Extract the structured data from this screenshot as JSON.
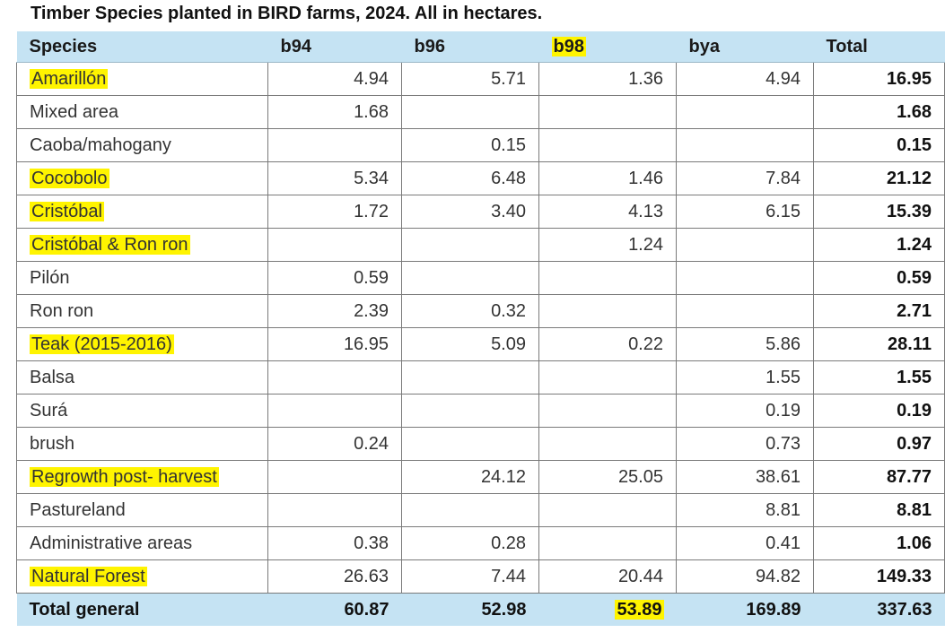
{
  "title": "Timber Species planted in BIRD farms, 2024. All in hectares.",
  "columns": [
    "Species",
    "b94",
    "b96",
    "b98",
    "bya",
    "Total"
  ],
  "rows": [
    {
      "species": "Amarillón",
      "b94": "4.94",
      "b96": "5.71",
      "b98": "1.36",
      "bya": "4.94",
      "total": "16.95",
      "highlight": true
    },
    {
      "species": "Mixed area",
      "b94": "1.68",
      "b96": "",
      "b98": "",
      "bya": "",
      "total": "1.68",
      "highlight": false
    },
    {
      "species": "Caoba/mahogany",
      "b94": "",
      "b96": "0.15",
      "b98": "",
      "bya": "",
      "total": "0.15",
      "highlight": false
    },
    {
      "species": "Cocobolo",
      "b94": "5.34",
      "b96": "6.48",
      "b98": "1.46",
      "bya": "7.84",
      "total": "21.12",
      "highlight": true
    },
    {
      "species": "Cristóbal",
      "b94": "1.72",
      "b96": "3.40",
      "b98": "4.13",
      "bya": "6.15",
      "total": "15.39",
      "highlight": true
    },
    {
      "species": "Cristóbal & Ron ron",
      "b94": "",
      "b96": "",
      "b98": "1.24",
      "bya": "",
      "total": "1.24",
      "highlight": true
    },
    {
      "species": "Pilón",
      "b94": "0.59",
      "b96": "",
      "b98": "",
      "bya": "",
      "total": "0.59",
      "highlight": false
    },
    {
      "species": "Ron ron",
      "b94": "2.39",
      "b96": "0.32",
      "b98": "",
      "bya": "",
      "total": "2.71",
      "highlight": false
    },
    {
      "species": "Teak (2015-2016)",
      "b94": "16.95",
      "b96": "5.09",
      "b98": "0.22",
      "bya": "5.86",
      "total": "28.11",
      "highlight": true
    },
    {
      "species": "Balsa",
      "b94": "",
      "b96": "",
      "b98": "",
      "bya": "1.55",
      "total": "1.55",
      "highlight": false
    },
    {
      "species": "Surá",
      "b94": "",
      "b96": "",
      "b98": "",
      "bya": "0.19",
      "total": "0.19",
      "highlight": false
    },
    {
      "species": "brush",
      "b94": "0.24",
      "b96": "",
      "b98": "",
      "bya": "0.73",
      "total": "0.97",
      "highlight": false
    },
    {
      "species": "Regrowth post- harvest",
      "b94": "",
      "b96": "24.12",
      "b98": "25.05",
      "bya": "38.61",
      "total": "87.77",
      "highlight": true
    },
    {
      "species": "Pastureland",
      "b94": "",
      "b96": "",
      "b98": "",
      "bya": "8.81",
      "total": "8.81",
      "highlight": false
    },
    {
      "species": "Administrative areas",
      "b94": "0.38",
      "b96": "0.28",
      "b98": "",
      "bya": "0.41",
      "total": "1.06",
      "highlight": false
    },
    {
      "species": "Natural Forest",
      "b94": "26.63",
      "b96": "7.44",
      "b98": "20.44",
      "bya": "94.82",
      "total": "149.33",
      "highlight": true
    }
  ],
  "footer": {
    "label": "Total general",
    "b94": "60.87",
    "b96": "52.98",
    "b98": "53.89",
    "bya": "169.89",
    "total": "337.63"
  },
  "highlighted_header": "b98",
  "highlighted_footer_cell": "b98",
  "colors": {
    "header_bg": "#c5e3f3",
    "highlight": "#fff400",
    "border": "#7a7a7a"
  }
}
